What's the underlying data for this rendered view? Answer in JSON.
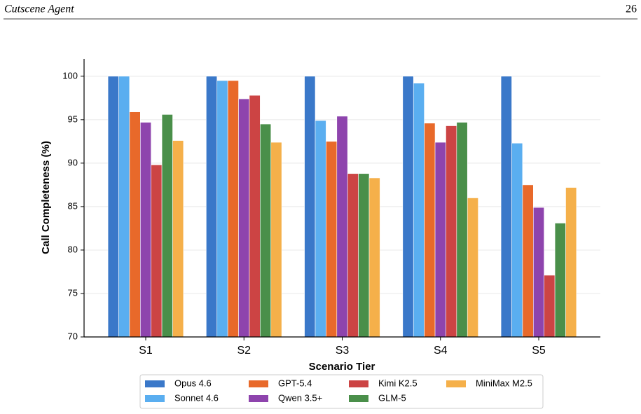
{
  "header": {
    "title": "Cutscene Agent",
    "page": "26"
  },
  "chart_data": {
    "type": "bar",
    "y_label": "Call Completeness (%)",
    "x_label": "Scenario Tier",
    "categories": [
      "S1",
      "S2",
      "S3",
      "S4",
      "S5"
    ],
    "series": [
      {
        "name": "Opus 4.6",
        "color": "#3a78c9",
        "values": [
          100,
          100,
          100,
          100,
          100
        ]
      },
      {
        "name": "Sonnet 4.6",
        "color": "#5aaef0",
        "values": [
          100,
          99.5,
          94.9,
          99.2,
          92.3
        ]
      },
      {
        "name": "GPT-5.4",
        "color": "#e8692a",
        "values": [
          95.9,
          99.5,
          92.5,
          94.6,
          87.5
        ]
      },
      {
        "name": "Qwen 3.5+",
        "color": "#8e44ad",
        "values": [
          94.7,
          97.4,
          95.4,
          92.4,
          84.9
        ]
      },
      {
        "name": "Kimi K2.5",
        "color": "#cc4444",
        "values": [
          89.8,
          97.8,
          88.8,
          94.3,
          77.1
        ]
      },
      {
        "name": "GLM-5",
        "color": "#4a8f4a",
        "values": [
          95.6,
          94.5,
          88.8,
          94.7,
          83.1
        ]
      },
      {
        "name": "MiniMax M2.5",
        "color": "#f5b04a",
        "values": [
          92.6,
          92.4,
          88.3,
          86.0,
          87.2
        ]
      }
    ],
    "ylim": [
      70,
      102
    ],
    "yticks": [
      70,
      75,
      80,
      85,
      90,
      95,
      100
    ],
    "grid": true,
    "legend": "bottom"
  }
}
